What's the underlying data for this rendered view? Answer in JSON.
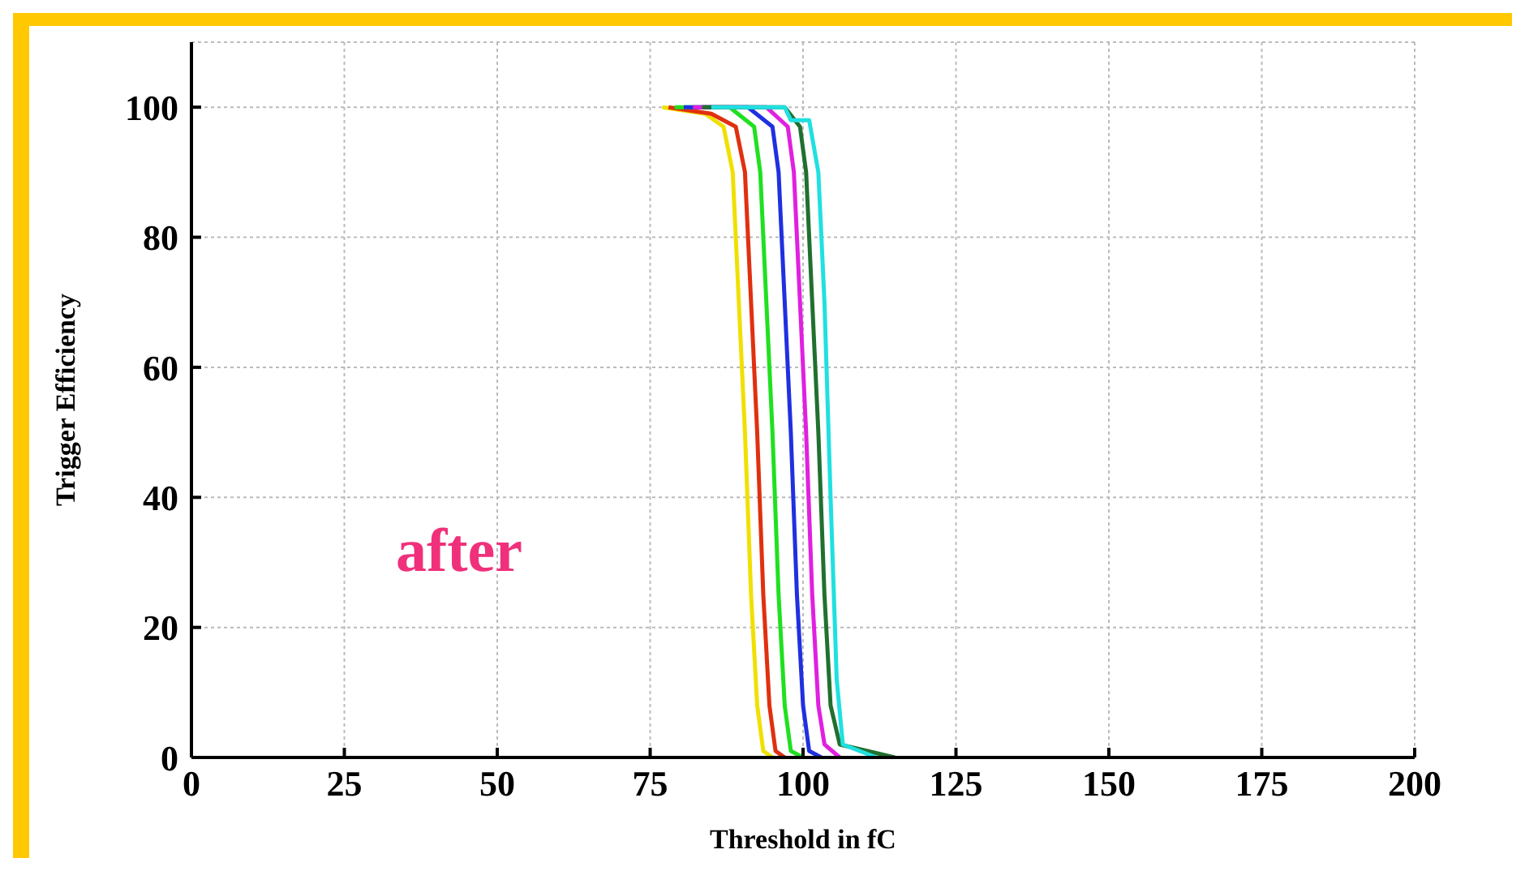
{
  "chart_data": {
    "type": "line",
    "xlabel": "Threshold in fC",
    "ylabel": "Trigger Efficiency",
    "annotations": [
      "after"
    ],
    "xlim": [
      0,
      200
    ],
    "xticks": [
      0,
      25,
      50,
      75,
      100,
      125,
      150,
      175,
      200
    ],
    "ylim": [
      0,
      110
    ],
    "yticks": [
      0,
      20,
      40,
      60,
      80,
      100
    ],
    "grid": true,
    "legend": false,
    "marker": "none",
    "line_style": "solid",
    "series": [
      {
        "color": "#f0e000",
        "x": [
          77,
          84,
          87,
          88.5,
          89.5,
          90.5,
          91.5,
          92.5,
          93.5,
          95
        ],
        "values": [
          100,
          99,
          97,
          90,
          70,
          50,
          25,
          8,
          1,
          0
        ]
      },
      {
        "color": "#e03010",
        "x": [
          78,
          85,
          89,
          90.5,
          91.5,
          92.5,
          93.5,
          94.5,
          95.5,
          97
        ],
        "values": [
          100,
          99,
          97,
          90,
          70,
          50,
          25,
          8,
          1,
          0
        ]
      },
      {
        "color": "#20e020",
        "x": [
          79,
          88,
          92,
          93,
          94,
          95,
          96,
          97,
          98,
          100
        ],
        "values": [
          100,
          100,
          97,
          90,
          70,
          50,
          25,
          8,
          1,
          0
        ]
      },
      {
        "color": "#2030e0",
        "x": [
          80.5,
          91,
          95,
          96,
          97,
          98,
          99,
          100,
          101,
          103
        ],
        "values": [
          100,
          100,
          97,
          90,
          70,
          50,
          25,
          8,
          1,
          0
        ]
      },
      {
        "color": "#e020e0",
        "x": [
          82,
          94,
          97.5,
          98.5,
          99.5,
          100.5,
          101.5,
          102.5,
          103.5,
          106
        ],
        "values": [
          100,
          100,
          97,
          90,
          70,
          50,
          25,
          8,
          2,
          0
        ]
      },
      {
        "color": "#207030",
        "x": [
          83.5,
          97,
          99.5,
          100.5,
          101.5,
          102.5,
          103.5,
          104.5,
          106,
          115
        ],
        "values": [
          100,
          100,
          97,
          90,
          70,
          50,
          25,
          8,
          2,
          0
        ]
      },
      {
        "color": "#20e0e0",
        "x": [
          85,
          97,
          98,
          101,
          102.5,
          103.5,
          104.5,
          105.5,
          106.5,
          112
        ],
        "values": [
          100,
          100,
          98,
          98,
          90,
          70,
          40,
          12,
          2,
          0
        ]
      }
    ]
  }
}
